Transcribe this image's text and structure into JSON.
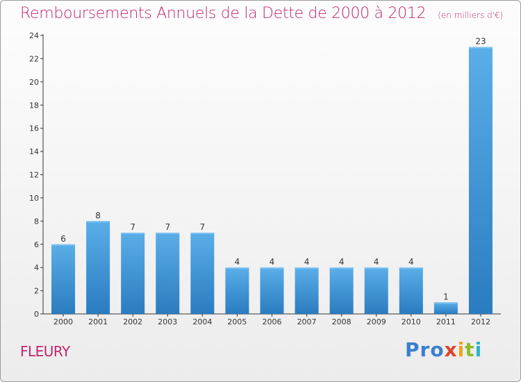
{
  "header": {
    "title": "Remboursements Annuels de la Dette de 2000 à 2012",
    "unit": "(en milliers d'€)"
  },
  "footer": {
    "town": "FLEURY",
    "logo_parts": [
      "Pro",
      "x",
      "i",
      "t",
      "i"
    ]
  },
  "colors": {
    "title": "#c0266f",
    "bar_top": "#5aaee8",
    "bar_bottom": "#2a7cc0"
  },
  "chart_data": {
    "type": "bar",
    "title": "Remboursements Annuels de la Dette de 2000 à 2012",
    "categories": [
      "2000",
      "2001",
      "2002",
      "2003",
      "2004",
      "2005",
      "2006",
      "2007",
      "2008",
      "2009",
      "2010",
      "2011",
      "2012"
    ],
    "values": [
      6,
      8,
      7,
      7,
      7,
      4,
      4,
      4,
      4,
      4,
      4,
      1,
      23
    ],
    "ylim": [
      0,
      24
    ],
    "yticks": [
      0,
      2,
      4,
      6,
      8,
      10,
      12,
      14,
      16,
      18,
      20,
      22,
      24
    ],
    "grid": false,
    "data_labels": true
  }
}
